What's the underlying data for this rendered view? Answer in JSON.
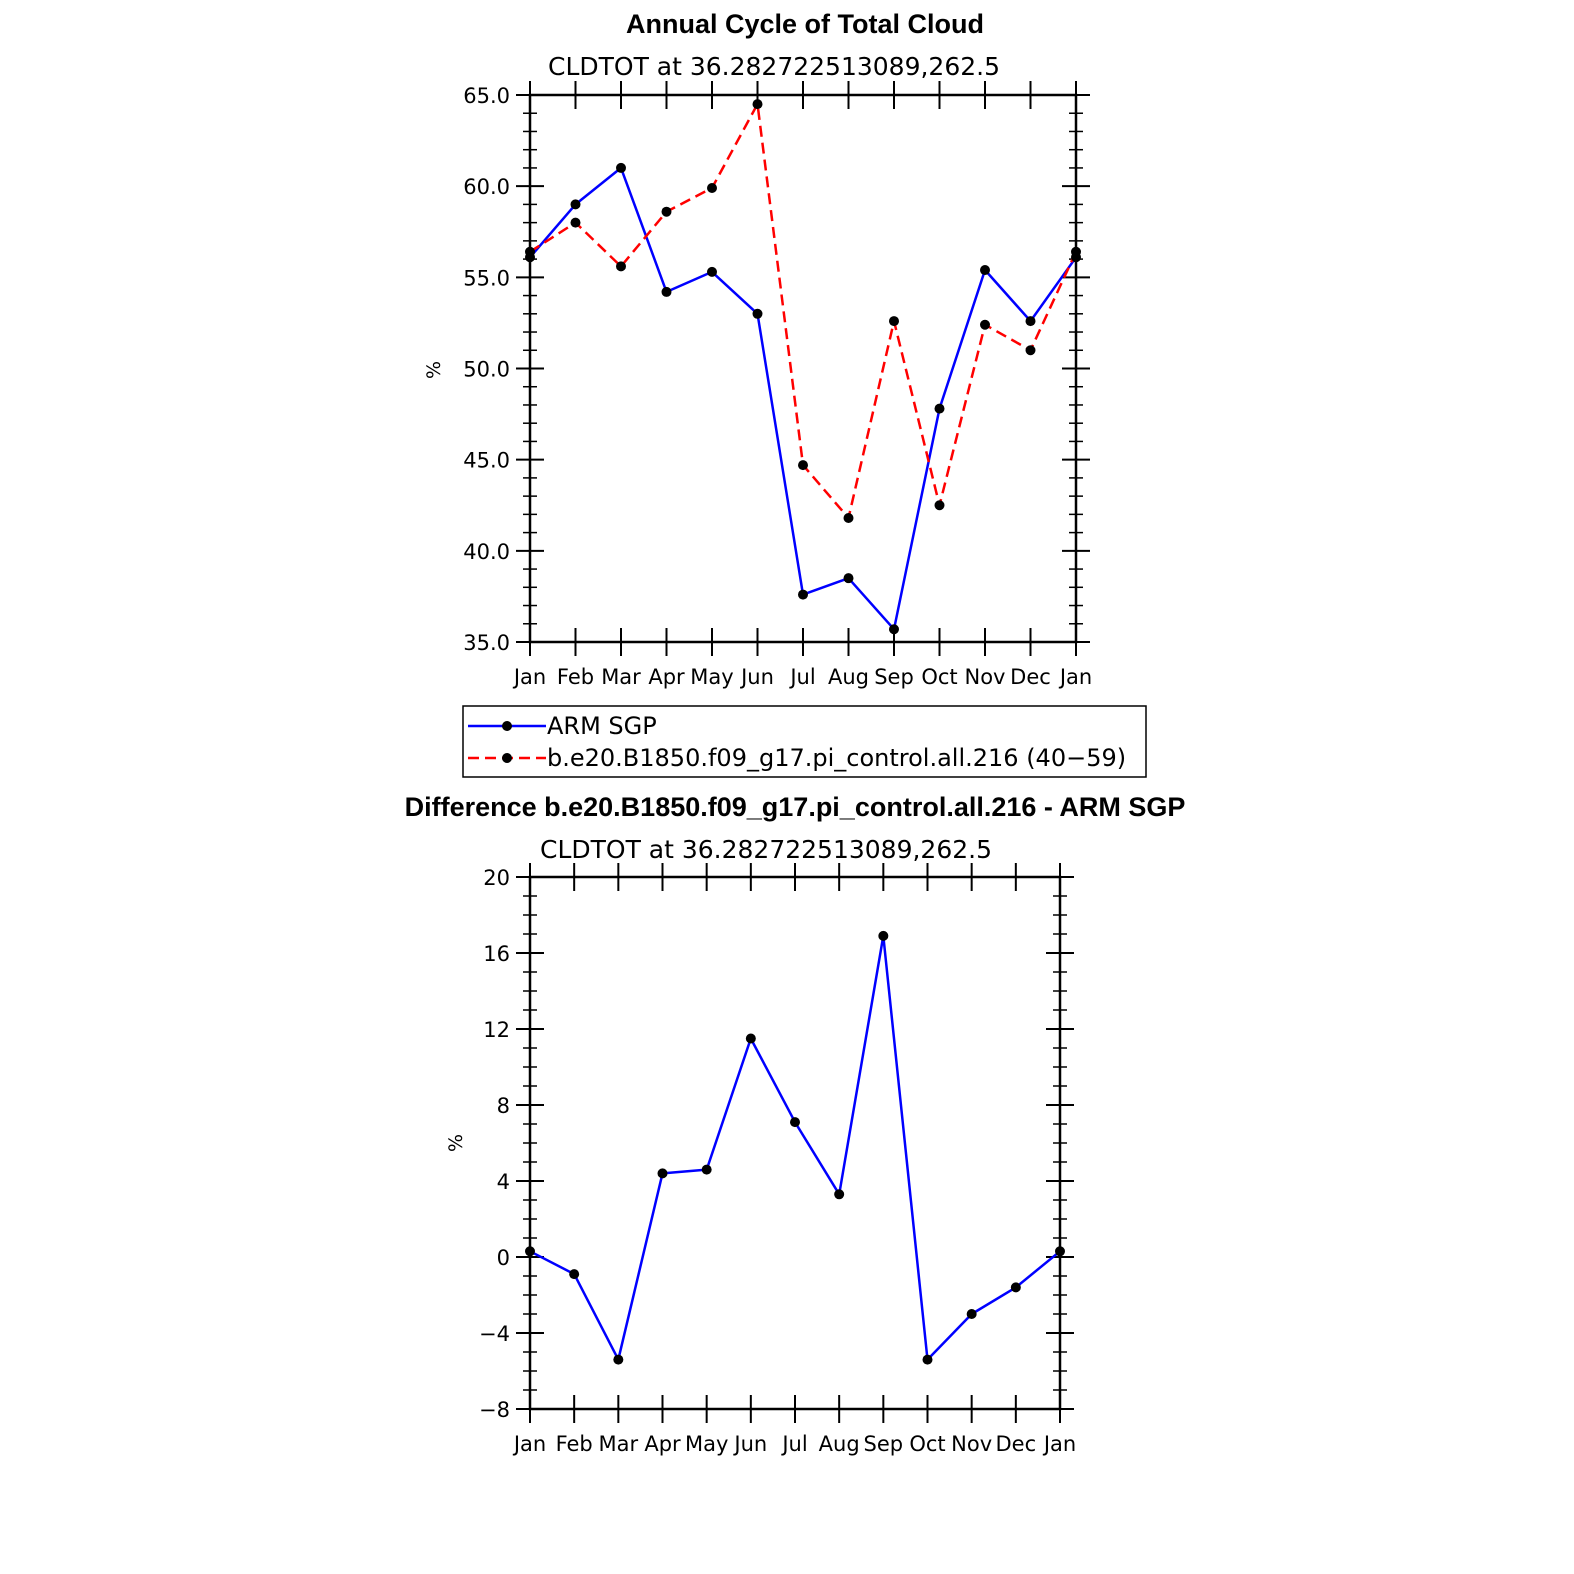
{
  "chart_data": [
    {
      "type": "line",
      "title": "Annual Cycle of Total Cloud",
      "subtitle": "CLDTOT at 36.282722513089,262.5",
      "ylabel": "%",
      "xlabel": "",
      "categories": [
        "Jan",
        "Feb",
        "Mar",
        "Apr",
        "May",
        "Jun",
        "Jul",
        "Aug",
        "Sep",
        "Oct",
        "Nov",
        "Dec",
        "Jan"
      ],
      "ylim": [
        35,
        65
      ],
      "yticks": [
        "35.0",
        "40.0",
        "45.0",
        "50.0",
        "55.0",
        "60.0",
        "65.0"
      ],
      "grid": false,
      "legend_position": "bottom",
      "series": [
        {
          "name": "ARM SGP",
          "color": "#0000ff",
          "dash": "solid",
          "values": [
            56.1,
            59.0,
            61.0,
            54.2,
            55.3,
            53.0,
            37.6,
            38.5,
            35.7,
            47.8,
            55.4,
            52.6,
            56.1
          ]
        },
        {
          "name": "b.e20.B1850.f09_g17.pi_control.all.216 (40−59)",
          "color": "#ff0000",
          "dash": "dashed",
          "values": [
            56.4,
            58.0,
            55.6,
            58.6,
            59.9,
            64.5,
            44.7,
            41.8,
            52.6,
            42.5,
            52.4,
            51.0,
            56.4
          ]
        }
      ]
    },
    {
      "type": "line",
      "title": "Difference b.e20.B1850.f09_g17.pi_control.all.216 - ARM SGP",
      "subtitle": "CLDTOT at 36.282722513089,262.5",
      "ylabel": "%",
      "xlabel": "",
      "categories": [
        "Jan",
        "Feb",
        "Mar",
        "Apr",
        "May",
        "Jun",
        "Jul",
        "Aug",
        "Sep",
        "Oct",
        "Nov",
        "Dec",
        "Jan"
      ],
      "ylim": [
        -8,
        20
      ],
      "yticks": [
        "−8",
        "−4",
        "0",
        "4",
        "8",
        "12",
        "16",
        "20"
      ],
      "grid": false,
      "series": [
        {
          "name": "",
          "color": "#0000ff",
          "dash": "solid",
          "values": [
            0.3,
            -0.9,
            -5.4,
            4.4,
            4.6,
            11.5,
            7.1,
            3.3,
            16.9,
            -5.4,
            -3.0,
            -1.6,
            0.3
          ]
        }
      ]
    }
  ]
}
